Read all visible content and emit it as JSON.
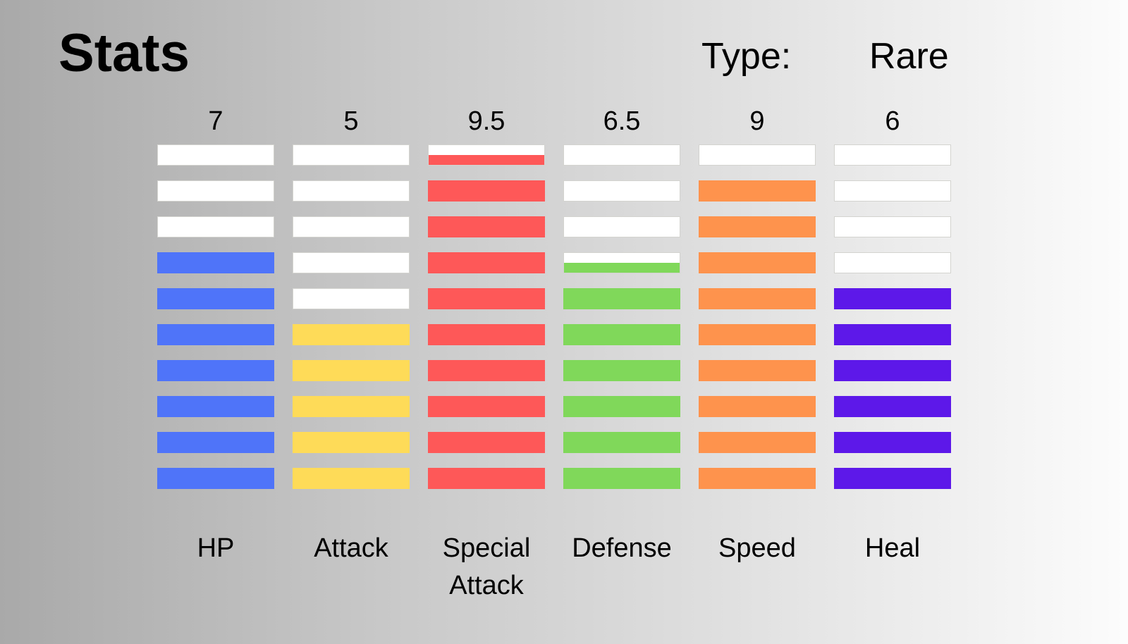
{
  "title": "Stats",
  "type_label": "Type:",
  "type_value": "Rare",
  "segments_per_column": 10,
  "chart_data": {
    "type": "bar",
    "title": "Stats",
    "categories": [
      "HP",
      "Attack",
      "Special Attack",
      "Defense",
      "Speed",
      "Heal"
    ],
    "value_labels": [
      "7",
      "5",
      "9.5",
      "6.5",
      "9",
      "6"
    ],
    "values": [
      7,
      5,
      9.5,
      6.5,
      9,
      6
    ],
    "ylim": [
      0,
      10
    ],
    "colors": [
      "#4f74f9",
      "#fedb58",
      "#fe5858",
      "#80d85a",
      "#fe934d",
      "#5d18e9"
    ]
  }
}
